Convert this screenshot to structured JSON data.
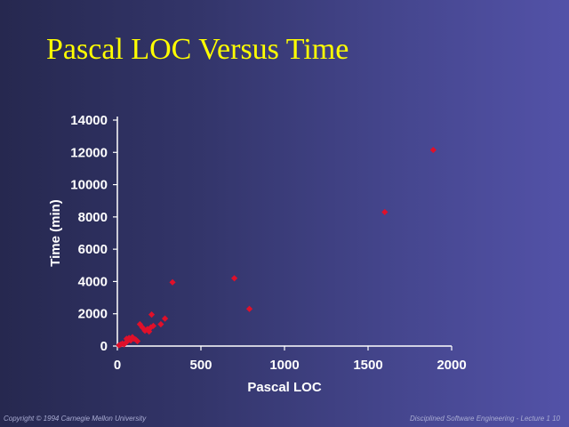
{
  "slide": {
    "title": "Pascal LOC Versus Time",
    "footer_left": "Copyright © 1994 Carnegie Mellon University",
    "footer_right": "Disciplined Software Engineering - Lecture 1   10"
  },
  "colors": {
    "title": "#ffff00",
    "marker": "#e0102a",
    "axis": "#ffffff",
    "text": "#ffffff"
  },
  "chart_data": {
    "type": "scatter",
    "title": "",
    "xlabel": "Pascal LOC",
    "ylabel": "Time (min)",
    "xlim": [
      0,
      2000
    ],
    "ylim": [
      0,
      14000
    ],
    "x_ticks": [
      "0",
      "500",
      "1000",
      "1500",
      "2000"
    ],
    "y_ticks": [
      "0",
      "2000",
      "4000",
      "6000",
      "8000",
      "10000",
      "12000",
      "14000"
    ],
    "grid": false,
    "legend": "none",
    "series": [
      {
        "points": [
          [
            10,
            50
          ],
          [
            20,
            100
          ],
          [
            30,
            150
          ],
          [
            40,
            100
          ],
          [
            50,
            200
          ],
          [
            55,
            450
          ],
          [
            60,
            300
          ],
          [
            70,
            500
          ],
          [
            80,
            350
          ],
          [
            90,
            550
          ],
          [
            100,
            450
          ],
          [
            110,
            400
          ],
          [
            120,
            300
          ],
          [
            135,
            1350
          ],
          [
            150,
            1150
          ],
          [
            165,
            950
          ],
          [
            180,
            1050
          ],
          [
            190,
            900
          ],
          [
            200,
            1150
          ],
          [
            205,
            1950
          ],
          [
            215,
            1250
          ],
          [
            260,
            1350
          ],
          [
            285,
            1700
          ],
          [
            330,
            3950
          ],
          [
            700,
            4200
          ],
          [
            790,
            2300
          ],
          [
            1600,
            8300
          ],
          [
            1890,
            12150
          ]
        ]
      }
    ]
  }
}
